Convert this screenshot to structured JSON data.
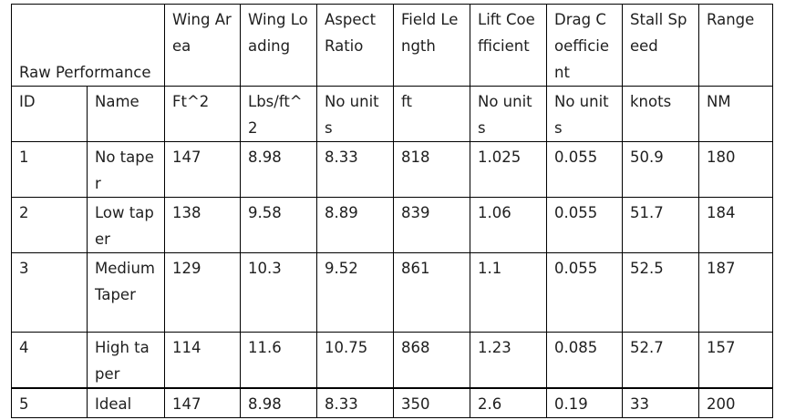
{
  "table": {
    "title": "Raw Performance",
    "header_row1": [
      "Wing Area",
      "Wing Loading",
      "Aspect Ratio",
      "Field Length",
      "Lift Coefficient",
      "Drag Coefficient",
      "Stall Speed",
      "Range"
    ],
    "header_row2": [
      "ID",
      "Name",
      "Ft^2",
      "Lbs/ft^2",
      "No units",
      "ft",
      "No units",
      "No units",
      "knots",
      "NM"
    ],
    "rows": [
      [
        "1",
        "No taper",
        "147",
        "8.98",
        "8.33",
        "818",
        "1.025",
        "0.055",
        "50.9",
        "180"
      ],
      [
        "2",
        "Low taper",
        "138",
        "9.58",
        "8.89",
        "839",
        "1.06",
        "0.055",
        "51.7",
        "184"
      ],
      [
        "3",
        "Medium Taper",
        "129",
        "10.3",
        "9.52",
        "861",
        "1.1",
        "0.055",
        "52.5",
        "187"
      ],
      [
        "4",
        "High taper",
        "114",
        "11.6",
        "10.75",
        "868",
        "1.23",
        "0.085",
        "52.7",
        "157"
      ],
      [
        "5",
        "Ideal",
        "147",
        "8.98",
        "8.33",
        "350",
        "2.6",
        "0.19",
        "33",
        "200"
      ]
    ]
  }
}
